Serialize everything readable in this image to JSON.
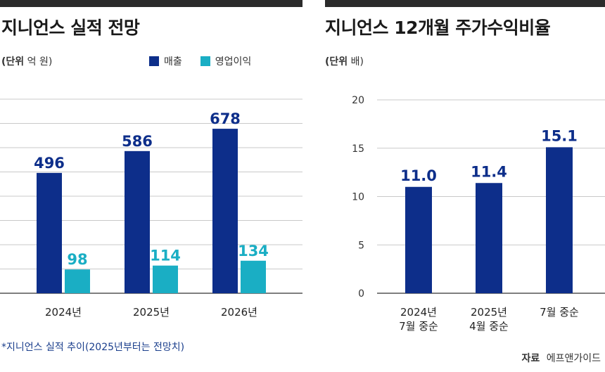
{
  "colors": {
    "revenue": "#0d2e8a",
    "operating_profit": "#1aaec4",
    "grid": "#c9c9c9",
    "axis": "#555555",
    "top_bar": "#2b2b2b"
  },
  "left_chart": {
    "title": "지니언스 실적 전망",
    "unit_label": "(단위",
    "unit_value": "억 원)",
    "legend": [
      "매출",
      "영업이익"
    ]
  },
  "right_chart": {
    "title": "지니언스 12개월 주가수익비율",
    "unit_label": "(단위",
    "unit_value": "배)"
  },
  "footnote": "*지니언스 실적 추이(2025년부터는 전망치)",
  "source": {
    "label": "자료",
    "value": "에프앤가이드"
  },
  "chart_data": [
    {
      "type": "bar",
      "title": "지니언스 실적 전망",
      "categories": [
        "2024년",
        "2025년",
        "2026년"
      ],
      "series": [
        {
          "name": "매출",
          "values": [
            496,
            586,
            678
          ]
        },
        {
          "name": "영업이익",
          "values": [
            98,
            114,
            134
          ]
        }
      ],
      "ylabel": "(단위 억 원)",
      "ylim": [
        0,
        800
      ],
      "grid": true,
      "y_ticks_visible": false,
      "legend_position": "top-right"
    },
    {
      "type": "bar",
      "title": "지니언스 12개월 주가수익비율",
      "categories": [
        [
          "2024년",
          "7월 중순"
        ],
        [
          "2025년",
          "4월 중순"
        ],
        [
          "7월 중순"
        ]
      ],
      "values": [
        11.0,
        11.4,
        15.1
      ],
      "value_labels": [
        "11.0",
        "11.4",
        "15.1"
      ],
      "ylabel": "(단위 배)",
      "ylim": [
        0,
        20
      ],
      "yticks": [
        0,
        5,
        10,
        15,
        20
      ],
      "grid": true
    }
  ]
}
